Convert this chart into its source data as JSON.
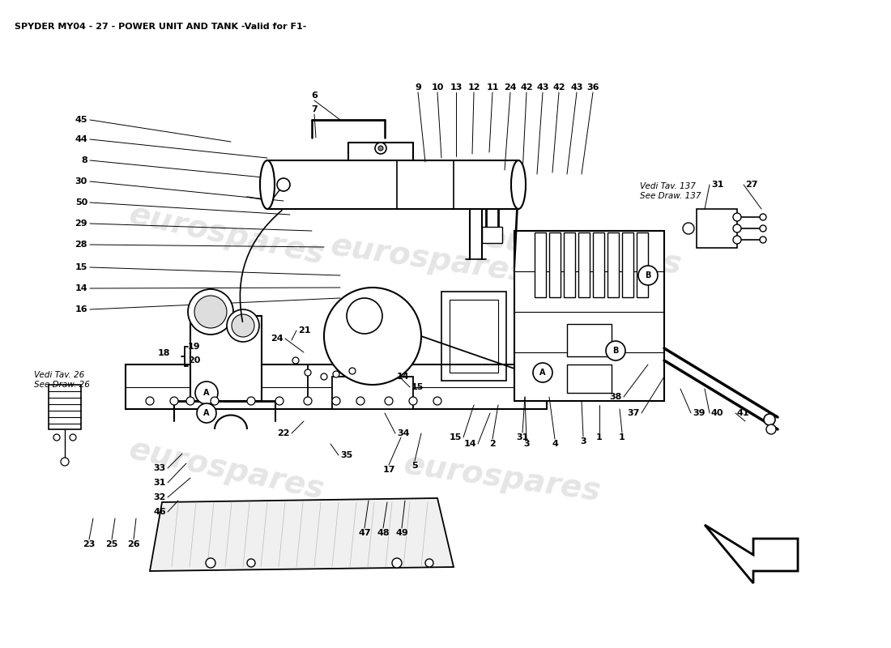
{
  "title": "SPYDER MY04 - 27 - POWER UNIT AND TANK -Valid for F1-",
  "title_fontsize": 8,
  "title_fontweight": "bold",
  "bg_color": "#ffffff",
  "line_color": "#000000",
  "watermark_color": "#cccccc",
  "label_fontsize": 8,
  "vedi_tav_137": "Vedi Tav. 137\nSee Draw. 137",
  "vedi_tav_26": "Vedi Tav. 26\nSee Draw. 26",
  "figsize": [
    11.0,
    8.0
  ],
  "dpi": 100
}
